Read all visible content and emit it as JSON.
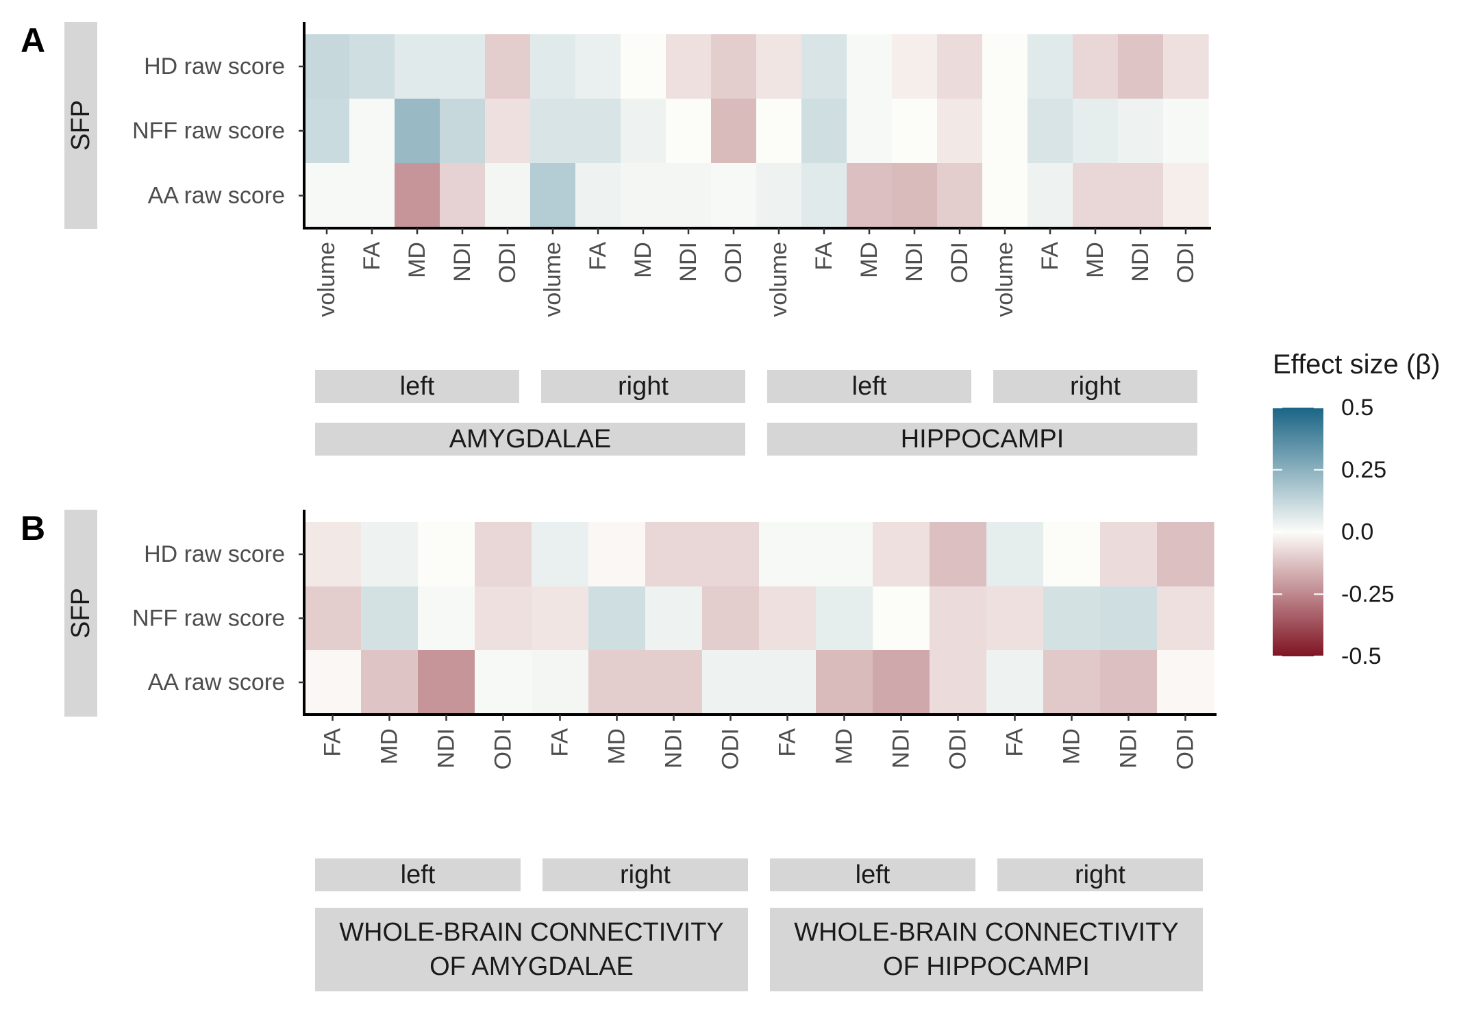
{
  "chart_data": {
    "type": "heatmap",
    "legend": {
      "title": "Effect size (β)",
      "min": -0.5,
      "max": 0.5,
      "ticks": [
        "0.5",
        "0.25",
        "0.0",
        "-0.25",
        "-0.5"
      ],
      "tick_values": [
        0.5,
        0.25,
        0.0,
        -0.25,
        -0.5
      ],
      "colors": {
        "low": "#7f1323",
        "mid": "#fcfcf8",
        "high": "#1a6585"
      },
      "placement": "right"
    },
    "panels": [
      {
        "panel_label": "A",
        "facet_label": "SFP",
        "rows": [
          "HD raw score",
          "NFF raw score",
          "AA raw score"
        ],
        "columns": [
          "volume",
          "FA",
          "MD",
          "NDI",
          "ODI",
          "volume",
          "FA",
          "MD",
          "NDI",
          "ODI",
          "volume",
          "FA",
          "MD",
          "NDI",
          "ODI",
          "volume",
          "FA",
          "MD",
          "NDI",
          "ODI"
        ],
        "groups": [
          {
            "label": "AMYGDALAE",
            "sides": [
              "left",
              "right"
            ]
          },
          {
            "label": "HIPPOCAMPI",
            "sides": [
              "left",
              "right"
            ]
          }
        ],
        "values": [
          [
            0.12,
            0.1,
            0.06,
            0.06,
            -0.1,
            0.06,
            0.04,
            0.0,
            -0.06,
            -0.1,
            -0.05,
            0.08,
            0.01,
            -0.03,
            -0.07,
            0.0,
            0.06,
            -0.08,
            -0.12,
            -0.06
          ],
          [
            0.11,
            0.01,
            0.22,
            0.12,
            -0.06,
            0.08,
            0.08,
            0.03,
            0.0,
            -0.14,
            0.0,
            0.1,
            0.01,
            0.0,
            -0.04,
            0.0,
            0.08,
            0.05,
            0.03,
            0.01
          ],
          [
            0.01,
            0.01,
            -0.22,
            -0.09,
            0.02,
            0.16,
            0.03,
            0.02,
            0.02,
            0.01,
            0.03,
            0.06,
            -0.13,
            -0.14,
            -0.1,
            0.0,
            0.03,
            -0.08,
            -0.08,
            -0.03
          ]
        ]
      },
      {
        "panel_label": "B",
        "facet_label": "SFP",
        "rows": [
          "HD raw score",
          "NFF raw score",
          "AA raw score"
        ],
        "columns": [
          "FA",
          "MD",
          "NDI",
          "ODI",
          "FA",
          "MD",
          "NDI",
          "ODI",
          "FA",
          "MD",
          "NDI",
          "ODI",
          "FA",
          "MD",
          "NDI",
          "ODI"
        ],
        "groups": [
          {
            "label": "WHOLE-BRAIN CONNECTIVITY OF AMYGDALAE",
            "label_lines": [
              "WHOLE-BRAIN CONNECTIVITY",
              "OF AMYGDALAE"
            ],
            "sides": [
              "left",
              "right"
            ]
          },
          {
            "label": "WHOLE-BRAIN CONNECTIVITY OF HIPPOCAMPI",
            "label_lines": [
              "WHOLE-BRAIN CONNECTIVITY",
              "OF HIPPOCAMPI"
            ],
            "sides": [
              "left",
              "right"
            ]
          }
        ],
        "values": [
          [
            -0.04,
            0.03,
            0.0,
            -0.08,
            0.04,
            -0.01,
            -0.08,
            -0.08,
            0.01,
            0.01,
            -0.06,
            -0.13,
            0.05,
            0.0,
            -0.07,
            -0.13
          ],
          [
            -0.1,
            0.09,
            0.01,
            -0.06,
            -0.05,
            0.1,
            0.03,
            -0.1,
            -0.06,
            0.05,
            0.0,
            -0.07,
            -0.06,
            0.09,
            0.1,
            -0.06
          ],
          [
            -0.01,
            -0.12,
            -0.22,
            0.01,
            0.02,
            -0.1,
            -0.1,
            0.03,
            0.03,
            -0.14,
            -0.18,
            -0.07,
            0.03,
            -0.11,
            -0.13,
            -0.01
          ]
        ]
      }
    ]
  }
}
